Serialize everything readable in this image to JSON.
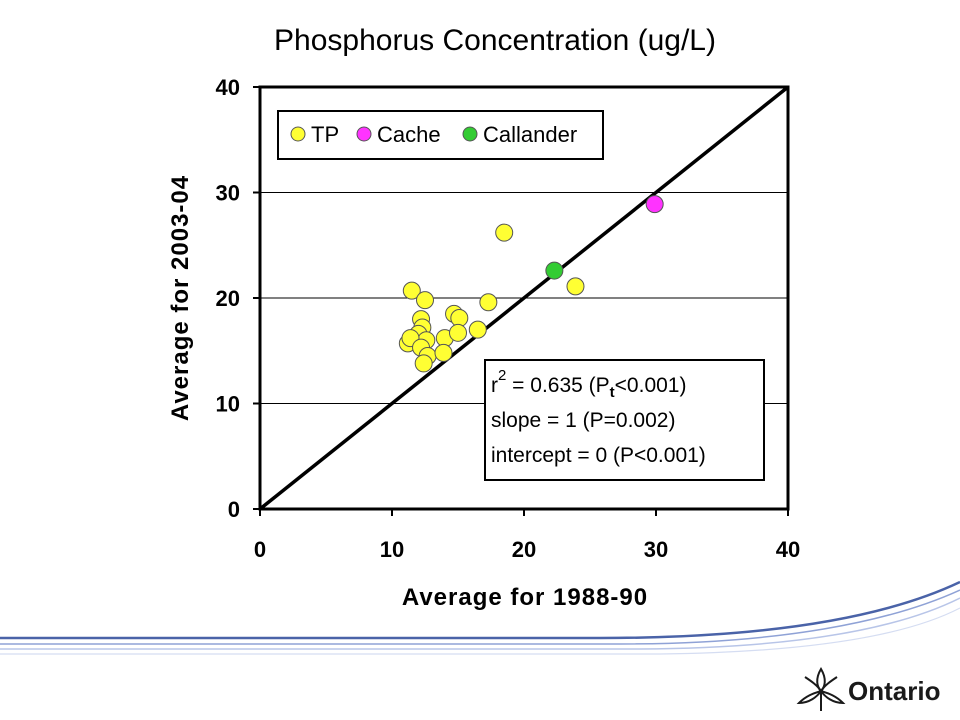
{
  "chart_data": {
    "type": "scatter",
    "title": "Phosphorus Concentration (ug/L)",
    "xlabel": "Average for 1988-90",
    "ylabel": "Average for 2003-04",
    "xlim": [
      0,
      40
    ],
    "ylim": [
      0,
      40
    ],
    "xticks": [
      "0",
      "10",
      "20",
      "30",
      "40"
    ],
    "yticks": [
      "0",
      "10",
      "20",
      "30",
      "40"
    ],
    "grid": "horizontal",
    "reference_line": "1:1",
    "legend_placement": "top-left",
    "series": [
      {
        "name": "TP",
        "color": "#ffff33",
        "points": [
          [
            11.5,
            20.7
          ],
          [
            12.5,
            19.8
          ],
          [
            12.2,
            18.0
          ],
          [
            12.3,
            17.2
          ],
          [
            12.0,
            16.6
          ],
          [
            12.6,
            16.0
          ],
          [
            11.2,
            15.7
          ],
          [
            11.4,
            16.2
          ],
          [
            12.2,
            15.3
          ],
          [
            12.7,
            14.5
          ],
          [
            12.4,
            13.8
          ],
          [
            14.0,
            16.2
          ],
          [
            13.9,
            14.8
          ],
          [
            14.7,
            18.5
          ],
          [
            15.1,
            18.1
          ],
          [
            15.0,
            16.7
          ],
          [
            16.5,
            17.0
          ],
          [
            17.3,
            19.6
          ],
          [
            18.5,
            26.2
          ],
          [
            23.9,
            21.1
          ]
        ]
      },
      {
        "name": "Cache",
        "color": "#ff33ff",
        "points": [
          [
            29.9,
            28.9
          ]
        ]
      },
      {
        "name": "Callander",
        "color": "#33cc33",
        "points": [
          [
            22.3,
            22.6
          ]
        ]
      }
    ],
    "stats": {
      "r_prefix": "r",
      "r_sup": "2",
      "r_value": " = 0.635  (P",
      "r_sub": "t",
      "r_suffix": "<0.001)",
      "slope": "slope = 1 (P=0.002)",
      "intercept": "intercept = 0 (P<0.001)"
    }
  },
  "logo": {
    "name": "trillium-icon",
    "text": "Ontario",
    "color": "#1a1a1a"
  },
  "footer": {
    "swoosh_color": "#5b73b8"
  }
}
